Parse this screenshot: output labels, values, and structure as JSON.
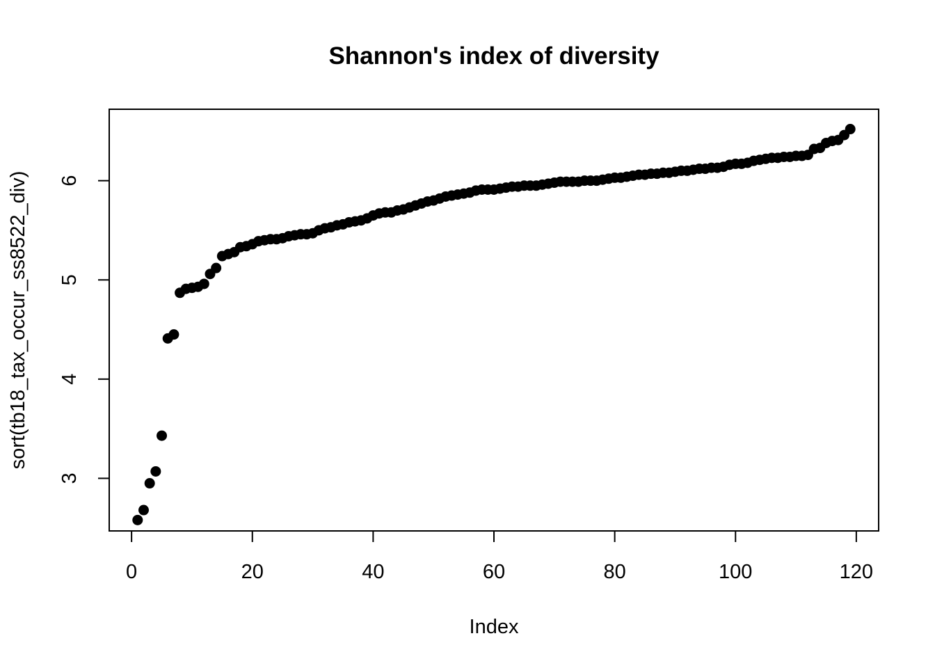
{
  "chart_data": {
    "type": "scatter",
    "title": "Shannon's index of diversity",
    "xlabel": "Index",
    "ylabel": "sort(tb18_tax_occur_ss8522_div)",
    "xlim": [
      -3.7,
      123.7
    ],
    "ylim": [
      2.47,
      6.72
    ],
    "xticks": [
      0,
      20,
      40,
      60,
      80,
      100,
      120
    ],
    "yticks": [
      3,
      4,
      5,
      6
    ],
    "grid": false,
    "legend": "none",
    "point_color": "#000000",
    "x": [
      1,
      2,
      3,
      4,
      5,
      6,
      7,
      8,
      9,
      10,
      11,
      12,
      13,
      14,
      15,
      16,
      17,
      18,
      19,
      20,
      21,
      22,
      23,
      24,
      25,
      26,
      27,
      28,
      29,
      30,
      31,
      32,
      33,
      34,
      35,
      36,
      37,
      38,
      39,
      40,
      41,
      42,
      43,
      44,
      45,
      46,
      47,
      48,
      49,
      50,
      51,
      52,
      53,
      54,
      55,
      56,
      57,
      58,
      59,
      60,
      61,
      62,
      63,
      64,
      65,
      66,
      67,
      68,
      69,
      70,
      71,
      72,
      73,
      74,
      75,
      76,
      77,
      78,
      79,
      80,
      81,
      82,
      83,
      84,
      85,
      86,
      87,
      88,
      89,
      90,
      91,
      92,
      93,
      94,
      95,
      96,
      97,
      98,
      99,
      100,
      101,
      102,
      103,
      104,
      105,
      106,
      107,
      108,
      109,
      110,
      111,
      112,
      113,
      114,
      115,
      116,
      117,
      118,
      119
    ],
    "y": [
      2.58,
      2.68,
      2.95,
      3.07,
      3.43,
      4.41,
      4.45,
      4.87,
      4.91,
      4.92,
      4.93,
      4.96,
      5.06,
      5.12,
      5.24,
      5.26,
      5.28,
      5.33,
      5.34,
      5.36,
      5.39,
      5.4,
      5.41,
      5.41,
      5.42,
      5.44,
      5.45,
      5.46,
      5.46,
      5.47,
      5.5,
      5.52,
      5.53,
      5.55,
      5.56,
      5.58,
      5.59,
      5.6,
      5.62,
      5.65,
      5.67,
      5.68,
      5.68,
      5.7,
      5.71,
      5.73,
      5.75,
      5.77,
      5.79,
      5.8,
      5.82,
      5.84,
      5.85,
      5.86,
      5.87,
      5.88,
      5.9,
      5.91,
      5.91,
      5.91,
      5.92,
      5.93,
      5.94,
      5.94,
      5.95,
      5.95,
      5.95,
      5.96,
      5.97,
      5.98,
      5.99,
      5.99,
      5.99,
      5.99,
      6.0,
      6.0,
      6.0,
      6.01,
      6.02,
      6.03,
      6.03,
      6.04,
      6.05,
      6.06,
      6.06,
      6.07,
      6.07,
      6.08,
      6.08,
      6.09,
      6.1,
      6.1,
      6.11,
      6.12,
      6.12,
      6.13,
      6.13,
      6.14,
      6.16,
      6.17,
      6.17,
      6.18,
      6.2,
      6.21,
      6.22,
      6.23,
      6.23,
      6.24,
      6.24,
      6.25,
      6.25,
      6.26,
      6.32,
      6.33,
      6.38,
      6.4,
      6.41,
      6.46,
      6.52
    ]
  }
}
